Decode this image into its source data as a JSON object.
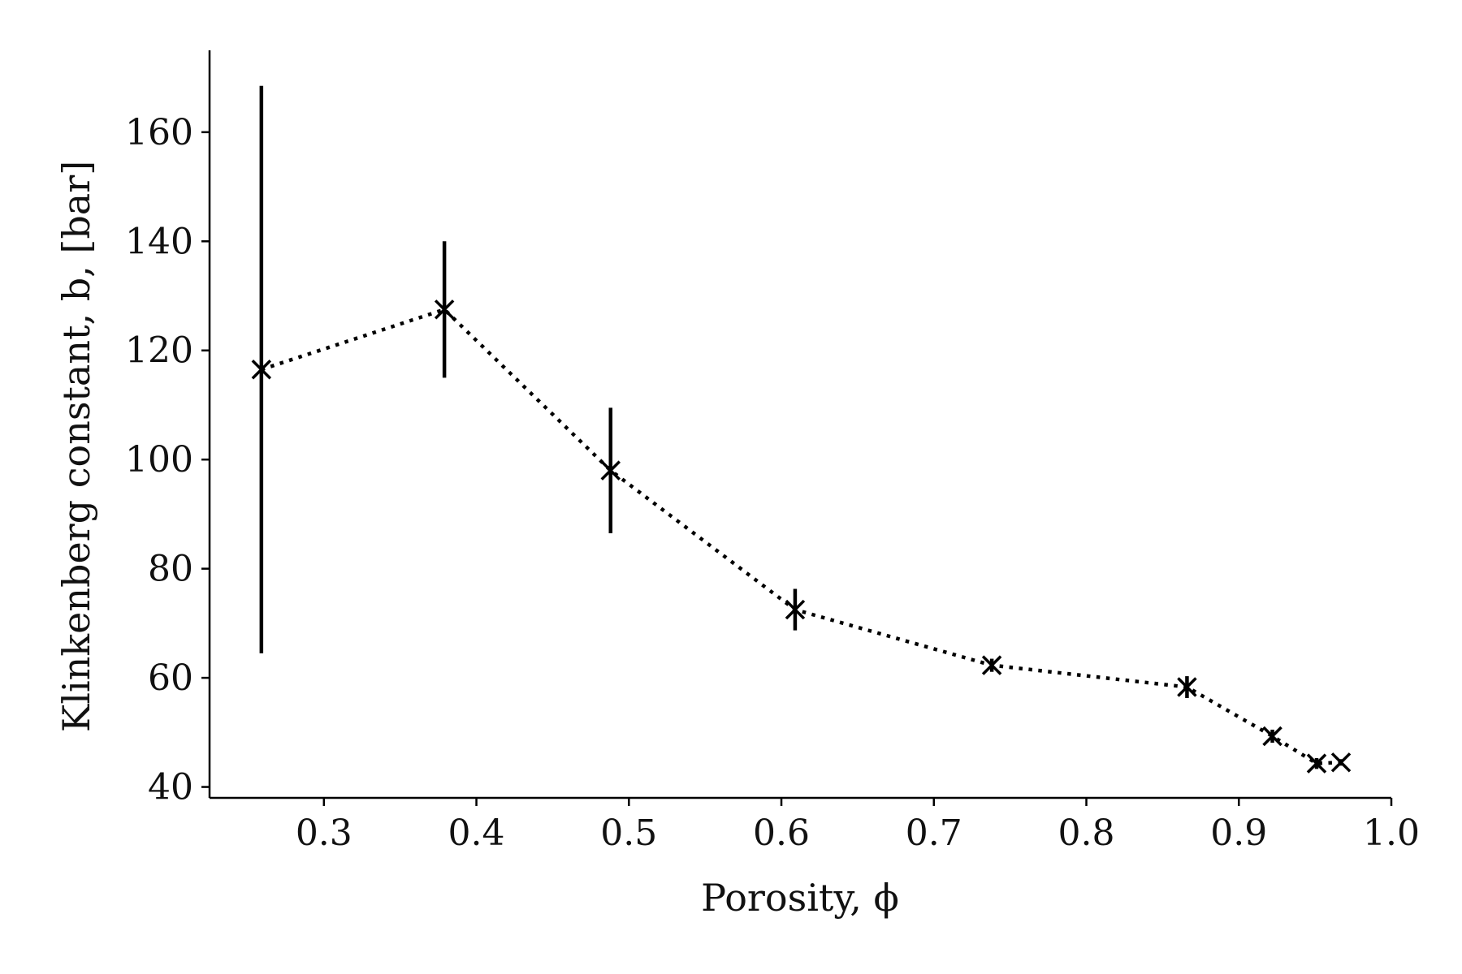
{
  "chart_data": {
    "type": "line",
    "title": "",
    "xlabel": "Porosity, ϕ",
    "ylabel": "Klinkenberg constant, b, [bar]",
    "xlim": [
      0.225,
      1.0
    ],
    "ylim": [
      38,
      175
    ],
    "xticks": [
      0.3,
      0.4,
      0.5,
      0.6,
      0.7,
      0.8,
      0.9,
      1.0
    ],
    "xtick_labels": [
      "0.3",
      "0.4",
      "0.5",
      "0.6",
      "0.7",
      "0.8",
      "0.9",
      "1.0"
    ],
    "yticks": [
      40,
      60,
      80,
      100,
      120,
      140,
      160
    ],
    "ytick_labels": [
      "40",
      "60",
      "80",
      "100",
      "120",
      "140",
      "160"
    ],
    "grid": false,
    "series": [
      {
        "name": "Klinkenberg constant",
        "marker": "x",
        "line_style": "dotted",
        "color": "#000000",
        "x": [
          0.259,
          0.379,
          0.488,
          0.609,
          0.738,
          0.866,
          0.922,
          0.951,
          0.967
        ],
        "y": [
          116.5,
          127.5,
          98.0,
          72.5,
          62.3,
          58.3,
          49.3,
          44.3,
          44.5
        ],
        "yerr": [
          52.0,
          12.5,
          11.5,
          3.8,
          1.2,
          2.0,
          1.2,
          1.0,
          0.6
        ]
      }
    ]
  }
}
